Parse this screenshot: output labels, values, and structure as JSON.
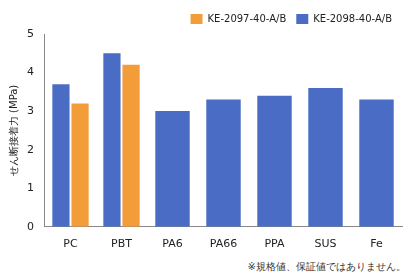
{
  "chart_data": {
    "type": "bar",
    "y_label": "せん断接着力 (MPa)",
    "categories": [
      "PC",
      "PBT",
      "PA6",
      "PA66",
      "PPA",
      "SUS",
      "Fe"
    ],
    "series": [
      {
        "name": "KE-2098-40-A/B",
        "color": "#4a6cc4",
        "values": [
          3.7,
          4.5,
          3.0,
          3.3,
          3.4,
          3.6,
          3.3
        ]
      },
      {
        "name": "KE-2097-40-A/B",
        "color": "#f39c3a",
        "values": [
          3.2,
          4.2,
          null,
          null,
          null,
          null,
          null
        ]
      }
    ],
    "ylim": [
      0,
      5
    ],
    "yticks": [
      0,
      1,
      2,
      3,
      4,
      5
    ],
    "grid": false,
    "legend": "upper right",
    "annotations": [
      "※規格値、保証値ではありません。"
    ]
  }
}
